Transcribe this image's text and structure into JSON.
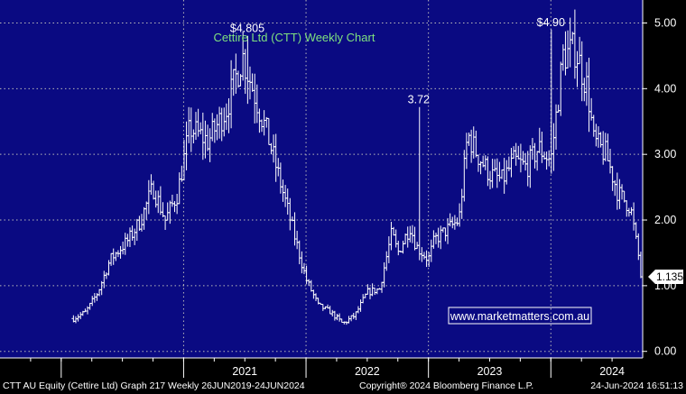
{
  "chart_data": {
    "type": "ohlc",
    "title": "Cettire Ltd (CTT) Weekly Chart",
    "website": "www.marketmatters.com.au",
    "y_axis": {
      "ticks": [
        "0.00",
        "1.00",
        "2.00",
        "3.00",
        "4.00",
        "5.00"
      ],
      "ylim": [
        -0.1,
        5.35
      ]
    },
    "x_axis": {
      "labels": [
        "2021",
        "2022",
        "2023",
        "2024"
      ]
    },
    "last_price": "1.135",
    "annotations": [
      {
        "text": "$4.805",
        "value": 4.805,
        "date": "2021.52"
      },
      {
        "text": "3.72",
        "value": 3.72,
        "date": "2022.92"
      },
      {
        "text": "$4.90",
        "value": 4.9,
        "date": "2024.0"
      }
    ],
    "anchors": [
      {
        "t": 2020.1,
        "v": 0.5
      },
      {
        "t": 2020.2,
        "v": 0.6
      },
      {
        "t": 2020.3,
        "v": 0.9
      },
      {
        "t": 2020.4,
        "v": 1.4
      },
      {
        "t": 2020.55,
        "v": 1.7
      },
      {
        "t": 2020.65,
        "v": 2.0
      },
      {
        "t": 2020.75,
        "v": 2.5
      },
      {
        "t": 2020.85,
        "v": 2.0
      },
      {
        "t": 2020.95,
        "v": 2.4
      },
      {
        "t": 2021.05,
        "v": 3.4
      },
      {
        "t": 2021.2,
        "v": 3.2
      },
      {
        "t": 2021.35,
        "v": 3.7
      },
      {
        "t": 2021.48,
        "v": 4.5
      },
      {
        "t": 2021.6,
        "v": 3.8
      },
      {
        "t": 2021.7,
        "v": 3.2
      },
      {
        "t": 2021.8,
        "v": 2.5
      },
      {
        "t": 2021.9,
        "v": 1.8
      },
      {
        "t": 2022.0,
        "v": 1.1
      },
      {
        "t": 2022.1,
        "v": 0.7
      },
      {
        "t": 2022.2,
        "v": 0.6
      },
      {
        "t": 2022.3,
        "v": 0.42
      },
      {
        "t": 2022.4,
        "v": 0.55
      },
      {
        "t": 2022.5,
        "v": 0.9
      },
      {
        "t": 2022.6,
        "v": 0.95
      },
      {
        "t": 2022.7,
        "v": 1.8
      },
      {
        "t": 2022.75,
        "v": 1.5
      },
      {
        "t": 2022.85,
        "v": 1.9
      },
      {
        "t": 2022.9,
        "v": 1.6
      },
      {
        "t": 2023.0,
        "v": 1.4
      },
      {
        "t": 2023.05,
        "v": 1.7
      },
      {
        "t": 2023.15,
        "v": 1.85
      },
      {
        "t": 2023.25,
        "v": 2.0
      },
      {
        "t": 2023.32,
        "v": 3.3
      },
      {
        "t": 2023.4,
        "v": 3.0
      },
      {
        "t": 2023.5,
        "v": 2.7
      },
      {
        "t": 2023.6,
        "v": 2.6
      },
      {
        "t": 2023.7,
        "v": 2.9
      },
      {
        "t": 2023.8,
        "v": 2.8
      },
      {
        "t": 2023.9,
        "v": 3.1
      },
      {
        "t": 2024.0,
        "v": 2.9
      },
      {
        "t": 2024.1,
        "v": 4.5
      },
      {
        "t": 2024.2,
        "v": 4.6
      },
      {
        "t": 2024.3,
        "v": 4.0
      },
      {
        "t": 2024.35,
        "v": 3.2
      },
      {
        "t": 2024.45,
        "v": 3.0
      },
      {
        "t": 2024.55,
        "v": 2.4
      },
      {
        "t": 2024.65,
        "v": 2.2
      },
      {
        "t": 2024.72,
        "v": 1.4
      },
      {
        "t": 2024.75,
        "v": 1.135
      }
    ]
  },
  "footer": {
    "left": "CTT AU Equity (Cettire Ltd) Graph 217  Weekly 26JUN2019-24JUN2024",
    "center": "Copyright® 2024 Bloomberg Finance L.P.",
    "right": "24-Jun-2024 16:51:13"
  }
}
